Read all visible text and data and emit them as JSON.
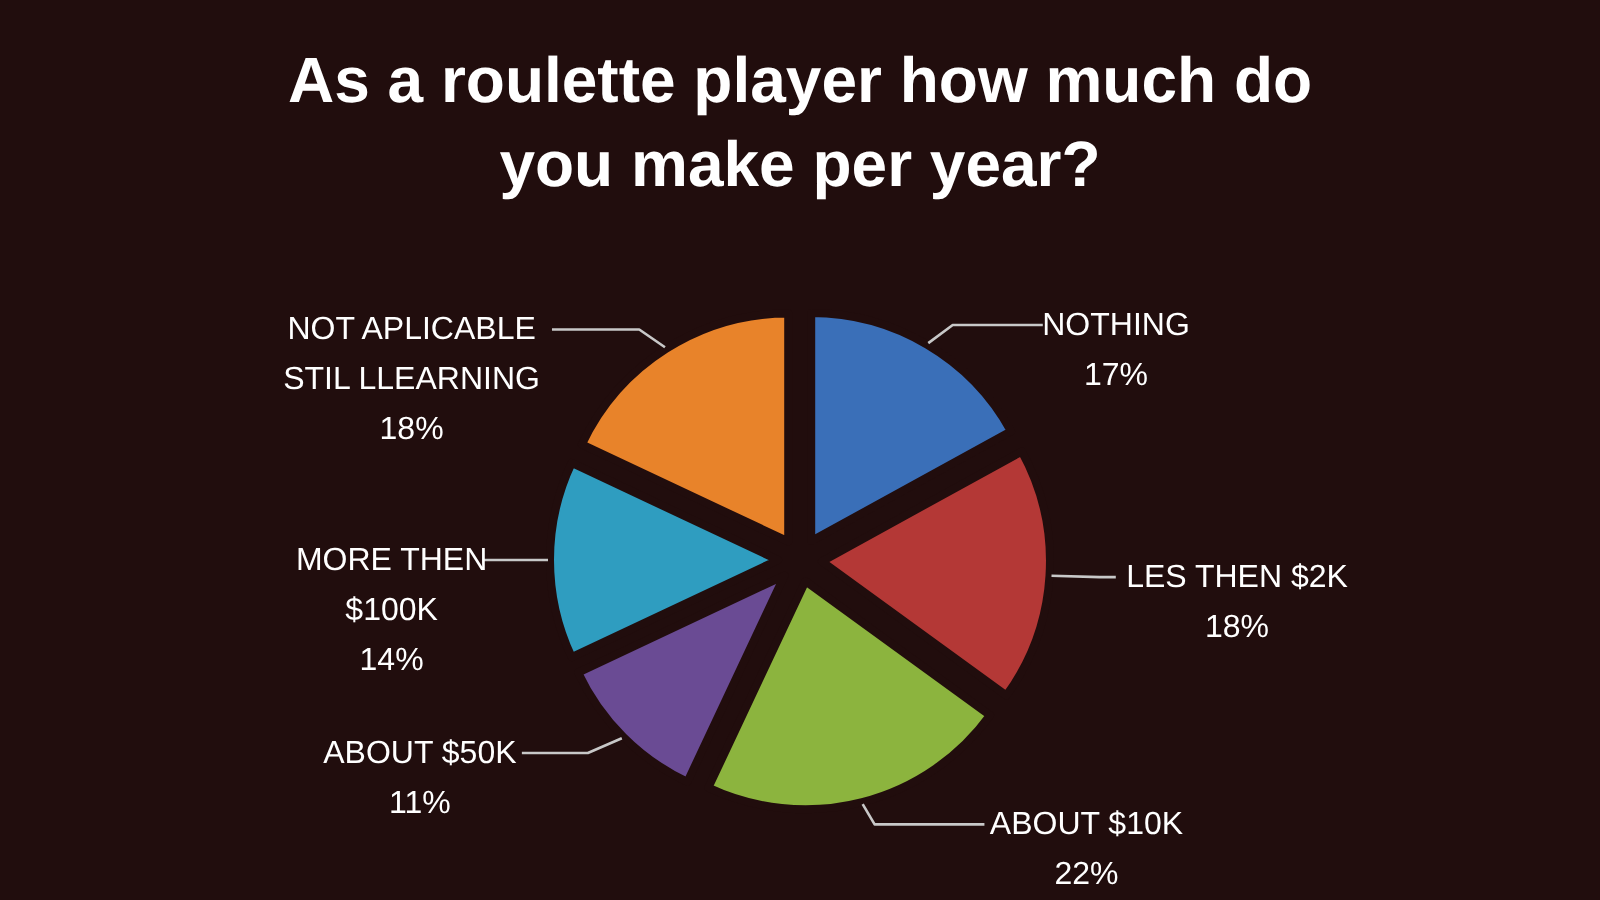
{
  "chart_data": {
    "type": "pie",
    "title": "As a roulette player how much do you make per year?",
    "categories": [
      "NOTHING",
      "LES THEN $2K",
      "ABOUT $10K",
      "ABOUT $50K",
      "MORE THEN $100K",
      "NOT APLICABLE STIL LLEARNING"
    ],
    "values": [
      17,
      18,
      22,
      11,
      14,
      18
    ],
    "value_labels": [
      "17%",
      "18%",
      "22%",
      "11%",
      "14%",
      "18%"
    ],
    "colors": [
      "#3a6fb8",
      "#b43836",
      "#8cb43e",
      "#6a4b94",
      "#2f9dc0",
      "#e8832a"
    ]
  }
}
